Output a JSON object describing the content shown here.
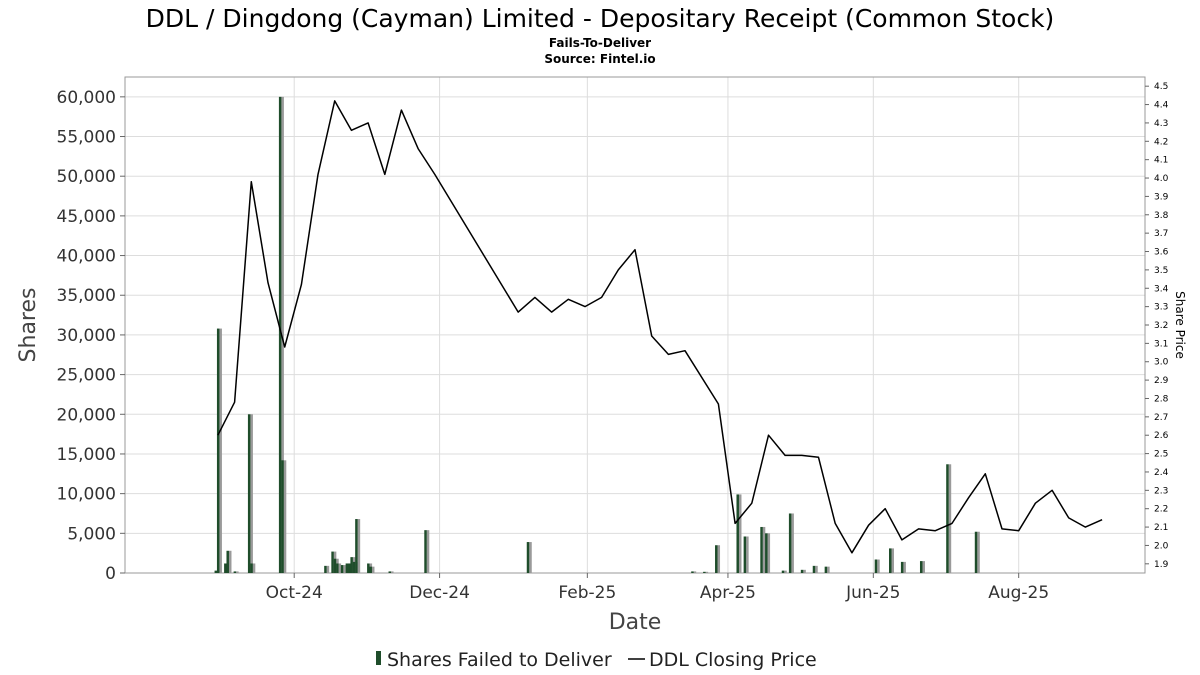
{
  "chart_data": {
    "type": "bar+line",
    "title": "DDL / Dingdong (Cayman) Limited - Depositary Receipt (Common Stock)",
    "subtitle1": "Fails-To-Deliver",
    "subtitle2": "Source: Fintel.io",
    "xlabel": "Date",
    "ylabel": "Shares",
    "y2label": "Share Price",
    "x_ticks": [
      {
        "date": "2024-10-01",
        "label": "Oct-24"
      },
      {
        "date": "2024-12-01",
        "label": "Dec-24"
      },
      {
        "date": "2025-02-01",
        "label": "Feb-25"
      },
      {
        "date": "2025-04-01",
        "label": "Apr-25"
      },
      {
        "date": "2025-06-01",
        "label": "Jun-25"
      },
      {
        "date": "2025-08-01",
        "label": "Aug-25"
      }
    ],
    "xlim": [
      "2024-07-22",
      "2025-09-23"
    ],
    "ylim": [
      0,
      62500
    ],
    "y_ticks": [
      {
        "v": 0,
        "label": "0"
      },
      {
        "v": 5000,
        "label": "5,000"
      },
      {
        "v": 10000,
        "label": "10,000"
      },
      {
        "v": 15000,
        "label": "15,000"
      },
      {
        "v": 20000,
        "label": "20,000"
      },
      {
        "v": 25000,
        "label": "25,000"
      },
      {
        "v": 30000,
        "label": "30,000"
      },
      {
        "v": 35000,
        "label": "35,000"
      },
      {
        "v": 40000,
        "label": "40,000"
      },
      {
        "v": 45000,
        "label": "45,000"
      },
      {
        "v": 50000,
        "label": "50,000"
      },
      {
        "v": 55000,
        "label": "55,000"
      },
      {
        "v": 60000,
        "label": "60,000"
      }
    ],
    "y2lim": [
      1.85,
      4.55
    ],
    "y2_ticks": [
      "1.9",
      "2.0",
      "2.1",
      "2.2",
      "2.3",
      "2.4",
      "2.5",
      "2.6",
      "2.7",
      "2.8",
      "2.9",
      "3.0",
      "3.1",
      "3.2",
      "3.3",
      "3.4",
      "3.5",
      "3.6",
      "3.7",
      "3.8",
      "3.9",
      "4.0",
      "4.1",
      "4.2",
      "4.3",
      "4.4",
      "4.5"
    ],
    "grid": true,
    "legend_position": "bottom",
    "series": [
      {
        "name": "Shares Failed to Deliver",
        "kind": "bar",
        "color": "#1f4d2b",
        "points": [
          {
            "x": "2024-08-29",
            "y": 300
          },
          {
            "x": "2024-08-30",
            "y": 30800
          },
          {
            "x": "2024-09-02",
            "y": 1200
          },
          {
            "x": "2024-09-03",
            "y": 2800
          },
          {
            "x": "2024-09-06",
            "y": 200
          },
          {
            "x": "2024-09-12",
            "y": 20000
          },
          {
            "x": "2024-09-13",
            "y": 1200
          },
          {
            "x": "2024-09-25",
            "y": 60000
          },
          {
            "x": "2024-09-26",
            "y": 14200
          },
          {
            "x": "2024-10-14",
            "y": 900
          },
          {
            "x": "2024-10-17",
            "y": 2700
          },
          {
            "x": "2024-10-18",
            "y": 1800
          },
          {
            "x": "2024-10-19",
            "y": 1200
          },
          {
            "x": "2024-10-21",
            "y": 1000
          },
          {
            "x": "2024-10-23",
            "y": 1200
          },
          {
            "x": "2024-10-24",
            "y": 1200
          },
          {
            "x": "2024-10-25",
            "y": 2000
          },
          {
            "x": "2024-10-26",
            "y": 1400
          },
          {
            "x": "2024-10-27",
            "y": 6800
          },
          {
            "x": "2024-11-01",
            "y": 1200
          },
          {
            "x": "2024-11-02",
            "y": 800
          },
          {
            "x": "2024-11-10",
            "y": 200
          },
          {
            "x": "2024-11-25",
            "y": 5400
          },
          {
            "x": "2025-01-07",
            "y": 3900
          },
          {
            "x": "2025-03-17",
            "y": 200
          },
          {
            "x": "2025-03-22",
            "y": 150
          },
          {
            "x": "2025-03-27",
            "y": 3500
          },
          {
            "x": "2025-04-05",
            "y": 9900
          },
          {
            "x": "2025-04-08",
            "y": 4600
          },
          {
            "x": "2025-04-15",
            "y": 5800
          },
          {
            "x": "2025-04-17",
            "y": 5000
          },
          {
            "x": "2025-04-24",
            "y": 300
          },
          {
            "x": "2025-04-27",
            "y": 7500
          },
          {
            "x": "2025-05-02",
            "y": 400
          },
          {
            "x": "2025-05-07",
            "y": 900
          },
          {
            "x": "2025-05-12",
            "y": 800
          },
          {
            "x": "2025-06-02",
            "y": 1700
          },
          {
            "x": "2025-06-08",
            "y": 3100
          },
          {
            "x": "2025-06-13",
            "y": 1400
          },
          {
            "x": "2025-06-21",
            "y": 1500
          },
          {
            "x": "2025-07-02",
            "y": 13700
          },
          {
            "x": "2025-07-14",
            "y": 5200
          }
        ]
      },
      {
        "name": "DDL Closing Price",
        "kind": "line",
        "color": "#000000",
        "axis": "right",
        "points": [
          {
            "x": "2024-08-30",
            "y": 2.6
          },
          {
            "x": "2024-09-06",
            "y": 2.78
          },
          {
            "x": "2024-09-13",
            "y": 3.98
          },
          {
            "x": "2024-09-20",
            "y": 3.43
          },
          {
            "x": "2024-09-27",
            "y": 3.08
          },
          {
            "x": "2024-10-04",
            "y": 3.42
          },
          {
            "x": "2024-10-11",
            "y": 4.02
          },
          {
            "x": "2024-10-18",
            "y": 4.42
          },
          {
            "x": "2024-10-25",
            "y": 4.26
          },
          {
            "x": "2024-11-01",
            "y": 4.3
          },
          {
            "x": "2024-11-08",
            "y": 4.02
          },
          {
            "x": "2024-11-15",
            "y": 4.37
          },
          {
            "x": "2024-11-22",
            "y": 4.16
          },
          {
            "x": "2024-11-29",
            "y": 4.02
          },
          {
            "x": "2025-01-03",
            "y": 3.27
          },
          {
            "x": "2025-01-10",
            "y": 3.35
          },
          {
            "x": "2025-01-17",
            "y": 3.27
          },
          {
            "x": "2025-01-24",
            "y": 3.34
          },
          {
            "x": "2025-01-31",
            "y": 3.3
          },
          {
            "x": "2025-02-07",
            "y": 3.35
          },
          {
            "x": "2025-02-14",
            "y": 3.5
          },
          {
            "x": "2025-02-21",
            "y": 3.61
          },
          {
            "x": "2025-02-28",
            "y": 3.14
          },
          {
            "x": "2025-03-07",
            "y": 3.04
          },
          {
            "x": "2025-03-14",
            "y": 3.06
          },
          {
            "x": "2025-03-28",
            "y": 2.77
          },
          {
            "x": "2025-04-04",
            "y": 2.12
          },
          {
            "x": "2025-04-11",
            "y": 2.23
          },
          {
            "x": "2025-04-18",
            "y": 2.6
          },
          {
            "x": "2025-04-25",
            "y": 2.49
          },
          {
            "x": "2025-05-02",
            "y": 2.49
          },
          {
            "x": "2025-05-09",
            "y": 2.48
          },
          {
            "x": "2025-05-16",
            "y": 2.12
          },
          {
            "x": "2025-05-23",
            "y": 1.96
          },
          {
            "x": "2025-05-30",
            "y": 2.11
          },
          {
            "x": "2025-06-06",
            "y": 2.2
          },
          {
            "x": "2025-06-13",
            "y": 2.03
          },
          {
            "x": "2025-06-20",
            "y": 2.09
          },
          {
            "x": "2025-06-27",
            "y": 2.08
          },
          {
            "x": "2025-07-04",
            "y": 2.12
          },
          {
            "x": "2025-07-11",
            "y": 2.26
          },
          {
            "x": "2025-07-18",
            "y": 2.39
          },
          {
            "x": "2025-07-25",
            "y": 2.09
          },
          {
            "x": "2025-08-01",
            "y": 2.08
          },
          {
            "x": "2025-08-08",
            "y": 2.23
          },
          {
            "x": "2025-08-15",
            "y": 2.3
          },
          {
            "x": "2025-08-22",
            "y": 2.15
          },
          {
            "x": "2025-08-29",
            "y": 2.1
          },
          {
            "x": "2025-09-05",
            "y": 2.14
          }
        ]
      }
    ]
  },
  "colors": {
    "bar_main": "#1f4d2b",
    "bar_shadow": "#9a9a9a",
    "line": "#000000",
    "grid": "#dddddd",
    "frame": "#999999"
  }
}
